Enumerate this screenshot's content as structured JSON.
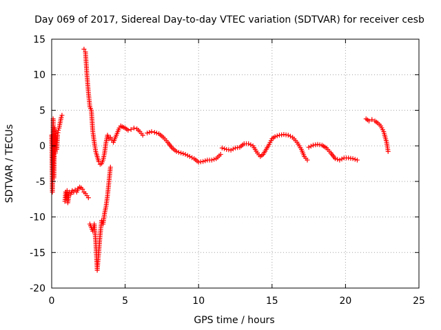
{
  "chart_data": {
    "type": "scatter",
    "title": "Day 069 of 2017, Sidereal Day-to-day VTEC variation (SDTVAR) for receiver cesb",
    "xlabel": "GPS time / hours",
    "ylabel": "SDTVAR / TECUs",
    "xlim": [
      0,
      25
    ],
    "ylim": [
      -20,
      15
    ],
    "xticks": [
      "0",
      "5",
      "10",
      "15",
      "20",
      "25"
    ],
    "yticks": [
      "15",
      "10",
      "5",
      "0",
      "-5",
      "-10",
      "-15",
      "-20"
    ],
    "grid": true,
    "marker": "+",
    "color": "#ff0000",
    "series": [
      {
        "name": "SDTVAR",
        "segments": [
          {
            "x": [
              0,
              0.05,
              0.1,
              0.15,
              0.2,
              0.25,
              0.3,
              0.35,
              0.4,
              0.45,
              0.5,
              0.55,
              0.6,
              0.65,
              0.7
            ],
            "y": [
              1.5,
              -6.5,
              3.8,
              -4.5,
              2.5,
              -1.0,
              2.0,
              -0.5,
              1.5,
              2.2,
              2.5,
              3.0,
              3.5,
              4.0,
              4.3
            ]
          },
          {
            "x": [
              0.9,
              0.95,
              1.0,
              1.05,
              1.1,
              1.2,
              1.3,
              1.4,
              1.5,
              1.6,
              1.7,
              1.8,
              1.9,
              2.0,
              2.1,
              2.2,
              2.3,
              2.4,
              2.5
            ],
            "y": [
              -7.8,
              -6.5,
              -7.5,
              -6.3,
              -8.0,
              -6.5,
              -6.8,
              -6.3,
              -6.5,
              -6.2,
              -6.5,
              -6.0,
              -5.8,
              -5.9,
              -6.1,
              -6.5,
              -6.7,
              -7.0,
              -7.3
            ]
          },
          {
            "x": [
              2.2,
              2.3,
              2.4,
              2.5,
              2.6,
              2.7,
              2.8,
              2.9,
              3.0,
              3.1,
              3.2,
              3.3,
              3.4,
              3.5,
              3.6,
              3.7,
              3.8,
              3.9,
              4.0,
              4.1,
              4.2,
              4.3,
              4.4,
              4.5,
              4.6,
              4.7,
              4.8,
              4.9,
              5.0,
              5.2,
              5.4,
              5.6,
              5.8,
              6.0,
              6.2
            ],
            "y": [
              13.6,
              13.2,
              10.0,
              7.5,
              5.5,
              5.0,
              2.0,
              0.5,
              -0.8,
              -1.5,
              -2.2,
              -2.6,
              -2.5,
              -2.0,
              -1.0,
              0.5,
              1.5,
              1.0,
              1.2,
              0.8,
              0.5,
              1.0,
              1.5,
              2.0,
              2.5,
              2.8,
              2.7,
              2.6,
              2.5,
              2.2,
              2.3,
              2.5,
              2.4,
              2.0,
              1.5
            ]
          },
          {
            "x": [
              2.6,
              2.7,
              2.8,
              2.9,
              3.0,
              3.1,
              3.2,
              3.3,
              3.4,
              3.5,
              3.6,
              3.7,
              3.8,
              3.9,
              4.0
            ],
            "y": [
              -11.0,
              -11.5,
              -12.0,
              -11.0,
              -13.5,
              -17.5,
              -15.0,
              -12.5,
              -10.5,
              -11.0,
              -9.5,
              -8.5,
              -7.0,
              -5.0,
              -3.0
            ]
          },
          {
            "x": [
              6.5,
              6.8,
              7.0,
              7.3,
              7.6,
              7.9,
              8.2,
              8.5,
              8.8,
              9.1,
              9.4,
              9.7,
              10.0,
              10.3,
              10.6,
              10.9,
              11.2,
              11.5
            ],
            "y": [
              1.8,
              2.0,
              1.9,
              1.7,
              1.2,
              0.5,
              -0.3,
              -0.8,
              -1.0,
              -1.2,
              -1.5,
              -1.8,
              -2.3,
              -2.2,
              -2.0,
              -2.0,
              -1.8,
              -1.2
            ]
          },
          {
            "x": [
              11.6,
              11.9,
              12.2,
              12.5,
              12.8,
              13.1,
              13.4,
              13.7,
              14.0,
              14.2,
              14.4,
              14.6,
              14.8,
              15.0,
              15.2,
              15.5,
              15.8,
              16.1,
              16.4,
              16.7,
              17.0,
              17.2,
              17.4
            ],
            "y": [
              -0.3,
              -0.5,
              -0.6,
              -0.3,
              -0.2,
              0.3,
              0.3,
              0.0,
              -1.0,
              -1.5,
              -1.2,
              -0.5,
              0.2,
              1.0,
              1.3,
              1.5,
              1.6,
              1.5,
              1.2,
              0.5,
              -0.5,
              -1.5,
              -2.0
            ]
          },
          {
            "x": [
              17.5,
              17.8,
              18.1,
              18.4,
              18.7,
              19.0,
              19.3,
              19.6,
              19.9,
              20.2,
              20.5,
              20.8
            ],
            "y": [
              -0.2,
              0.1,
              0.2,
              0.1,
              -0.3,
              -1.0,
              -1.8,
              -2.0,
              -1.7,
              -1.7,
              -1.8,
              -2.0
            ]
          },
          {
            "x": [
              21.4,
              21.6,
              21.8,
              22.0,
              22.2,
              22.4,
              22.6,
              22.8,
              22.9
            ],
            "y": [
              3.8,
              3.5,
              3.7,
              3.5,
              3.2,
              2.8,
              2.0,
              0.5,
              -0.8
            ]
          }
        ]
      }
    ]
  }
}
